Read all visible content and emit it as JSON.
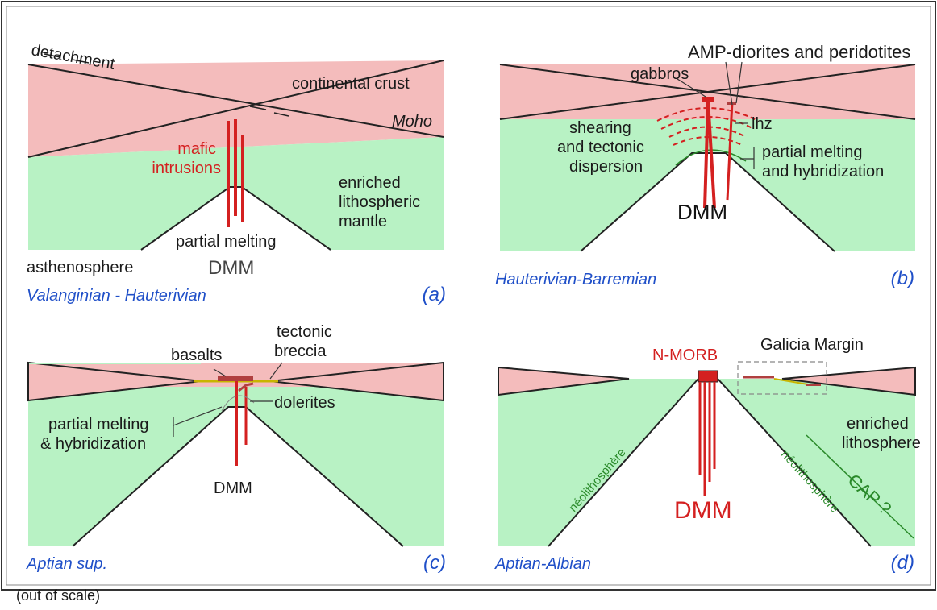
{
  "colors": {
    "crust": "#f4bcbc",
    "mantle": "#b8f2c4",
    "intrusion": "#d42020",
    "caption": "#1f4fc8",
    "neolithosphere": "#2a8a2a"
  },
  "panel_a": {
    "detachment": "detachment",
    "continental_crust": "continental crust",
    "moho": "Moho",
    "mafic": "mafic",
    "intrusions": "intrusions",
    "enriched": "enriched",
    "lithospheric": "lithospheric",
    "mantle": "mantle",
    "partial_melting": "partial melting",
    "asthenosphere": "asthenosphere",
    "dmm": "DMM",
    "stage": "Valanginian - Hauterivian",
    "letter": "(a)"
  },
  "panel_b": {
    "amp": "AMP-diorites and peridotites",
    "gabbros": "gabbros",
    "shearing": "shearing",
    "tectonic": "and tectonic",
    "dispersion": "dispersion",
    "lhz": "lhz",
    "partial_melting": "partial melting",
    "hybridization": "and hybridization",
    "dmm": "DMM",
    "stage": "Hauterivian-Barremian",
    "letter": "(b)"
  },
  "panel_c": {
    "tectonic": "tectonic",
    "breccia": "breccia",
    "basalts": "basalts",
    "dolerites": "dolerites",
    "partial_melting": "partial melting",
    "hybridization": "& hybridization",
    "dmm": "DMM",
    "stage": "Aptian sup.",
    "letter": "(c)",
    "scale_note": "(out of scale)"
  },
  "panel_d": {
    "nmorb": "N-MORB",
    "galicia": "Galicia Margin",
    "enriched": "enriched",
    "lithosphere": "lithosphere",
    "neo_left": "néolithosphère",
    "neo_right": "néolithosphère",
    "cap": "CAP ?",
    "dmm": "DMM",
    "stage": "Aptian-Albian",
    "letter": "(d)"
  }
}
